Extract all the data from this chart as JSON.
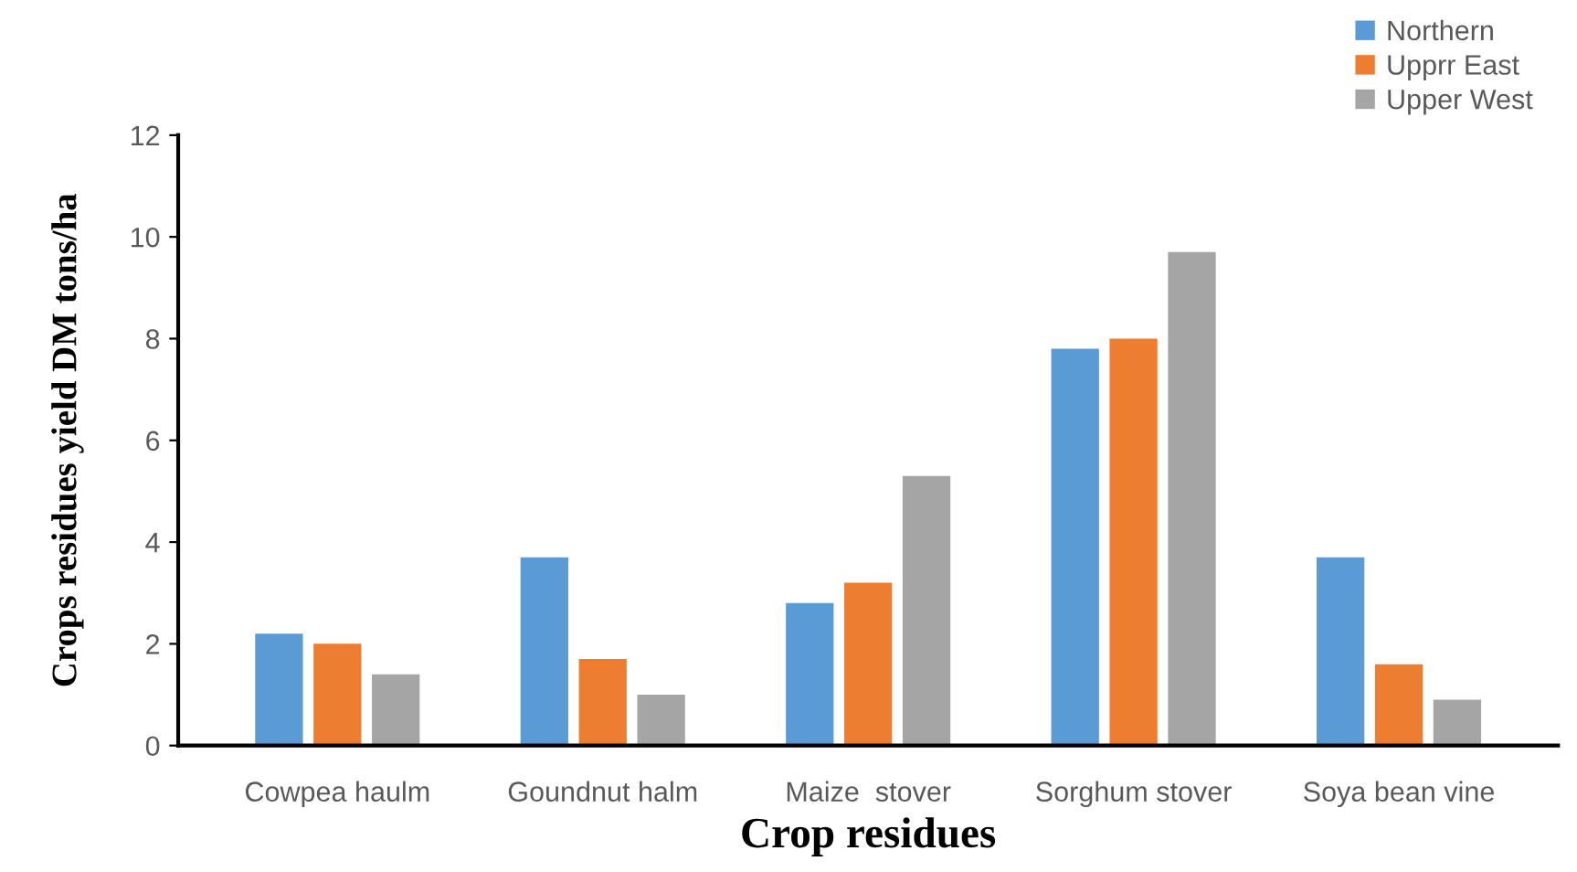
{
  "chart_data": {
    "type": "bar",
    "xlabel": "Crop residues",
    "ylabel": "Crops residues yield DM tons/ha",
    "categories": [
      "Cowpea haulm",
      "Goundnut halm",
      "Maize  stover",
      "Sorghum stover",
      "Soya bean vine"
    ],
    "series": [
      {
        "name": "Northern",
        "color": "#5b9bd5",
        "values": [
          2.2,
          3.7,
          2.8,
          7.8,
          3.7
        ]
      },
      {
        "name": "Upprr East",
        "color": "#ed7d31",
        "values": [
          2.0,
          1.7,
          3.2,
          8.0,
          1.6
        ]
      },
      {
        "name": "Upper West",
        "color": "#a5a5a5",
        "values": [
          1.4,
          1.0,
          5.3,
          9.7,
          0.9
        ]
      }
    ],
    "ylim": [
      0,
      12
    ],
    "yticks": [
      0,
      2,
      4,
      6,
      8,
      10,
      12
    ],
    "grid": false,
    "legend": "top right"
  }
}
